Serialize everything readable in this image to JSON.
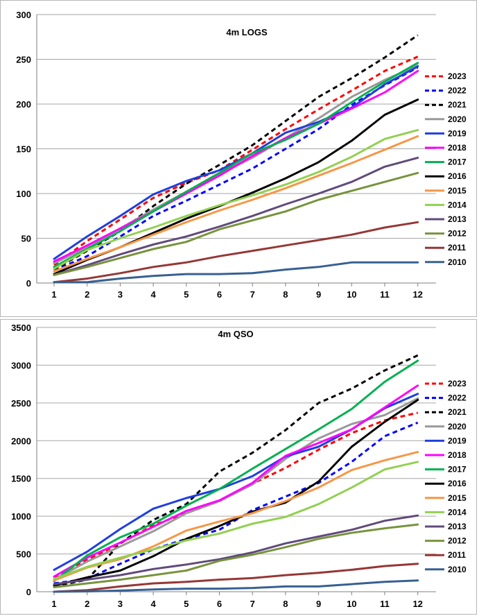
{
  "chart_data": [
    {
      "type": "line",
      "title": "4m LOGS",
      "x": [
        1,
        2,
        3,
        4,
        5,
        6,
        7,
        8,
        9,
        10,
        11,
        12
      ],
      "ylim": [
        0,
        300
      ],
      "yticks": [
        0,
        50,
        100,
        150,
        200,
        250,
        300
      ],
      "grid": true,
      "legend_position": "right",
      "series": [
        {
          "name": "2023",
          "color": "#ff0000",
          "dash": true,
          "values": [
            20,
            47,
            71,
            95,
            112,
            126,
            149,
            172,
            194,
            215,
            237,
            253
          ]
        },
        {
          "name": "2022",
          "color": "#0000ff",
          "dash": true,
          "values": [
            14,
            30,
            52,
            75,
            92,
            110,
            128,
            150,
            172,
            199,
            221,
            241
          ]
        },
        {
          "name": "2021",
          "color": "#000000",
          "dash": true,
          "values": [
            15,
            36,
            58,
            86,
            111,
            132,
            154,
            181,
            208,
            229,
            252,
            277
          ]
        },
        {
          "name": "2020",
          "color": "#999999",
          "dash": false,
          "values": [
            22,
            40,
            61,
            82,
            102,
            122,
            140,
            162,
            184,
            208,
            227,
            243
          ]
        },
        {
          "name": "2019",
          "color": "#1f3fdf",
          "dash": false,
          "values": [
            27,
            52,
            75,
            99,
            114,
            126,
            145,
            168,
            180,
            196,
            222,
            242
          ]
        },
        {
          "name": "2018",
          "color": "#ff00ff",
          "dash": false,
          "values": [
            24,
            42,
            61,
            80,
            100,
            120,
            142,
            162,
            178,
            195,
            213,
            237
          ]
        },
        {
          "name": "2017",
          "color": "#00b050",
          "dash": false,
          "values": [
            18,
            38,
            58,
            80,
            102,
            123,
            145,
            160,
            178,
            202,
            225,
            246
          ]
        },
        {
          "name": "2016",
          "color": "#000000",
          "dash": false,
          "values": [
            10,
            26,
            40,
            56,
            72,
            86,
            101,
            117,
            135,
            159,
            188,
            205
          ]
        },
        {
          "name": "2015",
          "color": "#f79646",
          "dash": false,
          "values": [
            13,
            27,
            40,
            54,
            68,
            81,
            93,
            106,
            120,
            134,
            149,
            164
          ]
        },
        {
          "name": "2014",
          "color": "#92d050",
          "dash": false,
          "values": [
            16,
            37,
            50,
            62,
            75,
            87,
            98,
            110,
            124,
            141,
            161,
            171
          ]
        },
        {
          "name": "2013",
          "color": "#604a7b",
          "dash": false,
          "values": [
            9,
            20,
            32,
            43,
            52,
            63,
            75,
            88,
            100,
            113,
            130,
            140
          ]
        },
        {
          "name": "2012",
          "color": "#77933c",
          "dash": false,
          "values": [
            9,
            18,
            28,
            38,
            46,
            60,
            70,
            80,
            93,
            103,
            113,
            123
          ]
        },
        {
          "name": "2011",
          "color": "#953735",
          "dash": false,
          "values": [
            1,
            5,
            11,
            18,
            23,
            30,
            36,
            42,
            48,
            54,
            62,
            68
          ]
        },
        {
          "name": "2010",
          "color": "#376092",
          "dash": false,
          "values": [
            1,
            1,
            5,
            8,
            10,
            10,
            11,
            15,
            18,
            23,
            23,
            23
          ]
        }
      ]
    },
    {
      "type": "line",
      "title": "4m QSO",
      "x": [
        1,
        2,
        3,
        4,
        5,
        6,
        7,
        8,
        9,
        10,
        11,
        12
      ],
      "ylim": [
        0,
        3500
      ],
      "yticks": [
        0,
        500,
        1000,
        1500,
        2000,
        2500,
        3000,
        3500
      ],
      "grid": true,
      "legend_position": "right",
      "series": [
        {
          "name": "2023",
          "color": "#ff0000",
          "dash": true,
          "values": [
            190,
            420,
            640,
            880,
            1040,
            1200,
            1430,
            1640,
            1880,
            2100,
            2270,
            2370
          ]
        },
        {
          "name": "2022",
          "color": "#0000ff",
          "dash": true,
          "values": [
            110,
            170,
            370,
            560,
            700,
            820,
            1080,
            1260,
            1440,
            1720,
            2060,
            2240
          ]
        },
        {
          "name": "2021",
          "color": "#000000",
          "dash": true,
          "values": [
            70,
            160,
            640,
            950,
            1160,
            1590,
            1840,
            2140,
            2500,
            2690,
            2930,
            3130
          ]
        },
        {
          "name": "2020",
          "color": "#999999",
          "dash": false,
          "values": [
            160,
            400,
            600,
            800,
            1040,
            1200,
            1420,
            1760,
            2030,
            2220,
            2340,
            2560
          ]
        },
        {
          "name": "2019",
          "color": "#1f3fdf",
          "dash": false,
          "values": [
            290,
            530,
            830,
            1100,
            1240,
            1360,
            1530,
            1790,
            1920,
            2150,
            2430,
            2620
          ]
        },
        {
          "name": "2018",
          "color": "#ff00ff",
          "dash": false,
          "values": [
            200,
            450,
            650,
            860,
            1070,
            1210,
            1440,
            1800,
            1970,
            2150,
            2440,
            2730
          ]
        },
        {
          "name": "2017",
          "color": "#00b050",
          "dash": false,
          "values": [
            140,
            480,
            720,
            900,
            1140,
            1360,
            1630,
            1890,
            2150,
            2420,
            2780,
            3060
          ]
        },
        {
          "name": "2016",
          "color": "#000000",
          "dash": false,
          "values": [
            80,
            190,
            280,
            470,
            700,
            870,
            1060,
            1180,
            1460,
            1920,
            2250,
            2540
          ]
        },
        {
          "name": "2015",
          "color": "#f79646",
          "dash": false,
          "values": [
            150,
            320,
            430,
            600,
            810,
            930,
            1040,
            1200,
            1380,
            1610,
            1740,
            1850
          ]
        },
        {
          "name": "2014",
          "color": "#92d050",
          "dash": false,
          "values": [
            170,
            330,
            450,
            560,
            680,
            770,
            900,
            990,
            1160,
            1380,
            1620,
            1720
          ]
        },
        {
          "name": "2013",
          "color": "#604a7b",
          "dash": false,
          "values": [
            100,
            160,
            220,
            300,
            360,
            430,
            520,
            640,
            730,
            820,
            940,
            1010
          ]
        },
        {
          "name": "2012",
          "color": "#77933c",
          "dash": false,
          "values": [
            60,
            110,
            160,
            220,
            280,
            410,
            490,
            590,
            700,
            780,
            840,
            890
          ]
        },
        {
          "name": "2011",
          "color": "#953735",
          "dash": false,
          "values": [
            0,
            20,
            70,
            110,
            130,
            160,
            180,
            220,
            250,
            290,
            340,
            370
          ]
        },
        {
          "name": "2010",
          "color": "#376092",
          "dash": false,
          "values": [
            0,
            5,
            15,
            30,
            40,
            40,
            50,
            70,
            70,
            100,
            130,
            150
          ]
        }
      ]
    }
  ]
}
